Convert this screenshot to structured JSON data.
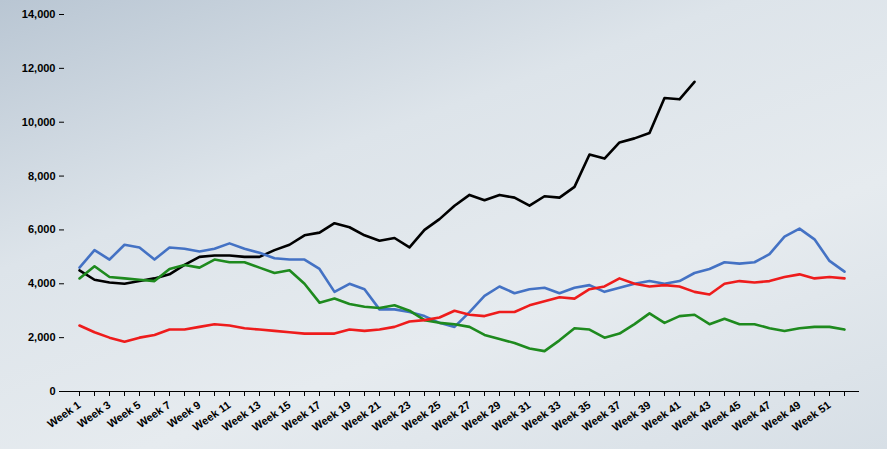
{
  "chart_data": {
    "type": "line",
    "categories": [
      "Week 1",
      null,
      "Week 3",
      null,
      "Week 5",
      null,
      "Week 7",
      null,
      "Week 9",
      null,
      "Week 11",
      null,
      "Week 13",
      null,
      "Week 15",
      null,
      "Week 17",
      null,
      "Week 19",
      null,
      "Week 21",
      null,
      "Week 23",
      null,
      "Week 25",
      null,
      "Week 27",
      null,
      "Week 29",
      null,
      "Week 31",
      null,
      "Week 33",
      null,
      "Week 35",
      null,
      "Week 37",
      null,
      "Week 39",
      null,
      "Week 41",
      null,
      "Week 43",
      null,
      "Week 45",
      null,
      "Week 47",
      null,
      "Week 49",
      null,
      "Week 51",
      null
    ],
    "series": [
      {
        "color": "#000000",
        "values": [
          4500,
          4150,
          4050,
          4000,
          4100,
          4200,
          4350,
          4700,
          5000,
          5050,
          5050,
          5000,
          5000,
          5250,
          5450,
          5800,
          5900,
          6250,
          6100,
          5800,
          5600,
          5700,
          5350,
          6000,
          6400,
          6900,
          7300,
          7100,
          7300,
          7200,
          6900,
          7250,
          7200,
          7600,
          8800,
          8650,
          9250,
          9400,
          9600,
          10900,
          10850,
          11500,
          null,
          null,
          null,
          null,
          null,
          null,
          null,
          null,
          null,
          null
        ]
      },
      {
        "color": "#4472c4",
        "values": [
          4600,
          5250,
          4900,
          5450,
          5350,
          4900,
          5350,
          5300,
          5200,
          5300,
          5500,
          5300,
          5150,
          4950,
          4900,
          4900,
          4550,
          3700,
          4000,
          3800,
          3050,
          3050,
          2950,
          2800,
          2550,
          2400,
          2950,
          3550,
          3900,
          3650,
          3800,
          3850,
          3650,
          3850,
          3950,
          3700,
          3850,
          4000,
          4100,
          4000,
          4100,
          4400,
          4550,
          4800,
          4750,
          4800,
          5100,
          5750,
          6050,
          5650,
          4850,
          4450
        ]
      },
      {
        "color": "#1e8a1e",
        "values": [
          4200,
          4650,
          4250,
          4200,
          4150,
          4100,
          4550,
          4700,
          4600,
          4900,
          4800,
          4800,
          4600,
          4400,
          4500,
          4000,
          3300,
          3450,
          3250,
          3150,
          3100,
          3200,
          3000,
          2650,
          2550,
          2500,
          2400,
          2100,
          1950,
          1800,
          1600,
          1500,
          1900,
          2350,
          2300,
          2000,
          2150,
          2500,
          2900,
          2550,
          2800,
          2850,
          2500,
          2700,
          2500,
          2500,
          2350,
          2250,
          2350,
          2400,
          2400,
          2300
        ]
      },
      {
        "color": "#ee1c1c",
        "values": [
          2450,
          2200,
          2000,
          1850,
          2000,
          2100,
          2300,
          2300,
          2400,
          2500,
          2450,
          2350,
          2300,
          2250,
          2200,
          2150,
          2150,
          2150,
          2300,
          2250,
          2300,
          2400,
          2600,
          2650,
          2750,
          3000,
          2850,
          2800,
          2950,
          2950,
          3200,
          3350,
          3500,
          3450,
          3800,
          3900,
          4200,
          4000,
          3900,
          3950,
          3900,
          3700,
          3600,
          4000,
          4100,
          4050,
          4100,
          4250,
          4350,
          4200,
          4250,
          4200
        ]
      }
    ],
    "ylim": [
      0,
      14000
    ],
    "yticks": [
      0,
      {
        "value": 2000,
        "label": "2,000"
      },
      {
        "value": 4000,
        "label": "4,000"
      },
      {
        "value": 6000,
        "label": "6,000"
      },
      {
        "value": 8000,
        "label": "8,000"
      },
      {
        "value": 10000,
        "label": "10,000"
      },
      {
        "value": 12000,
        "label": "12,000"
      },
      {
        "value": 14000,
        "label": "14,000"
      }
    ],
    "grid": false
  }
}
